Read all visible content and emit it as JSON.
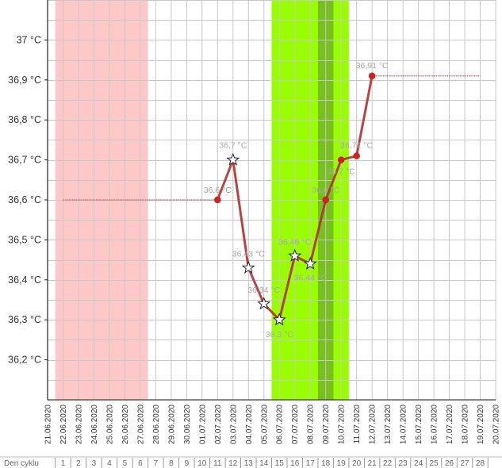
{
  "chart_data": {
    "type": "line",
    "title": "",
    "xlabel": "",
    "ylabel": "",
    "ylim": [
      36.1,
      37.1
    ],
    "yticks": [
      {
        "value": 36.2,
        "label": "36,2 °C"
      },
      {
        "value": 36.3,
        "label": "36,3 °C"
      },
      {
        "value": 36.4,
        "label": "36,4 °C"
      },
      {
        "value": 36.5,
        "label": "36,5 °C"
      },
      {
        "value": 36.6,
        "label": "36,6 °C"
      },
      {
        "value": 36.7,
        "label": "36,7 °C"
      },
      {
        "value": 36.8,
        "label": "36,8 °C"
      },
      {
        "value": 36.9,
        "label": "36,9 °C"
      },
      {
        "value": 37.0,
        "label": "37 °C"
      }
    ],
    "dates": [
      "21.06.2020",
      "22.06.2020",
      "23.06.2020",
      "24.06.2020",
      "25.06.2020",
      "26.06.2020",
      "27.06.2020",
      "28.06.2020",
      "29.06.2020",
      "30.06.2020",
      "01.07.2020",
      "02.07.2020",
      "03.07.2020",
      "04.07.2020",
      "05.07.2020",
      "06.07.2020",
      "07.07.2020",
      "08.07.2020",
      "09.07.2020",
      "10.07.2020",
      "11.07.2020",
      "12.07.2020",
      "13.07.2020",
      "14.07.2020",
      "15.07.2020",
      "16.07.2020",
      "17.07.2020",
      "18.07.2020",
      "19.07.2020",
      "20.07.2020"
    ],
    "cycle_label": "Den cyklu",
    "cycle_days": [
      "1",
      "2",
      "3",
      "4",
      "5",
      "6",
      "7",
      "8",
      "9",
      "10",
      "11",
      "12",
      "13",
      "14",
      "15",
      "16",
      "17",
      "18",
      "19",
      "20",
      "21",
      "22",
      "23",
      "24",
      "25",
      "26",
      "27",
      "28"
    ],
    "cycle_first_date": "22.06.2020",
    "bands": [
      {
        "name": "menstruation",
        "from": "22.06.2020",
        "to": "27.06.2020",
        "color": "#ffc8c8"
      },
      {
        "name": "fertile",
        "from": "06.07.2020",
        "to": "10.07.2020",
        "color": "#99ff00"
      },
      {
        "name": "ovulation",
        "from": "09.07.2020",
        "to": "09.07.2020",
        "color": "#77c020"
      }
    ],
    "cover_lines": [
      {
        "from": "22.06.2020",
        "to": "02.07.2020",
        "value": 36.6
      },
      {
        "from": "12.07.2020",
        "to": "19.07.2020",
        "value": 36.91
      }
    ],
    "series": [
      {
        "color": "#b33030",
        "points": [
          {
            "x": "02.07.2020",
            "y": 36.6,
            "label": "36,6 °C",
            "marker": "dot"
          },
          {
            "x": "03.07.2020",
            "y": 36.7,
            "label": "36,7 °C",
            "marker": "star"
          },
          {
            "x": "04.07.2020",
            "y": 36.43,
            "label": "36,43 °C",
            "marker": "star"
          },
          {
            "x": "05.07.2020",
            "y": 36.34,
            "label": "36,34 °C",
            "marker": "star"
          },
          {
            "x": "06.07.2020",
            "y": 36.3,
            "label": "36,3 °C",
            "marker": "star"
          },
          {
            "x": "07.07.2020",
            "y": 36.46,
            "label": "36,46 °C",
            "marker": "star"
          },
          {
            "x": "08.07.2020",
            "y": 36.44,
            "label": "36,44 °C",
            "marker": "star"
          },
          {
            "x": "09.07.2020",
            "y": 36.6,
            "label": "36,6 °C",
            "marker": "dot"
          },
          {
            "x": "10.07.2020",
            "y": 36.7,
            "label": "36,7 °C",
            "marker": "dot"
          },
          {
            "x": "11.07.2020",
            "y": 36.71,
            "label": "36,71 °C",
            "marker": "dot"
          },
          {
            "x": "12.07.2020",
            "y": 36.91,
            "label": "36,91 °C",
            "marker": "dot"
          }
        ]
      }
    ]
  }
}
